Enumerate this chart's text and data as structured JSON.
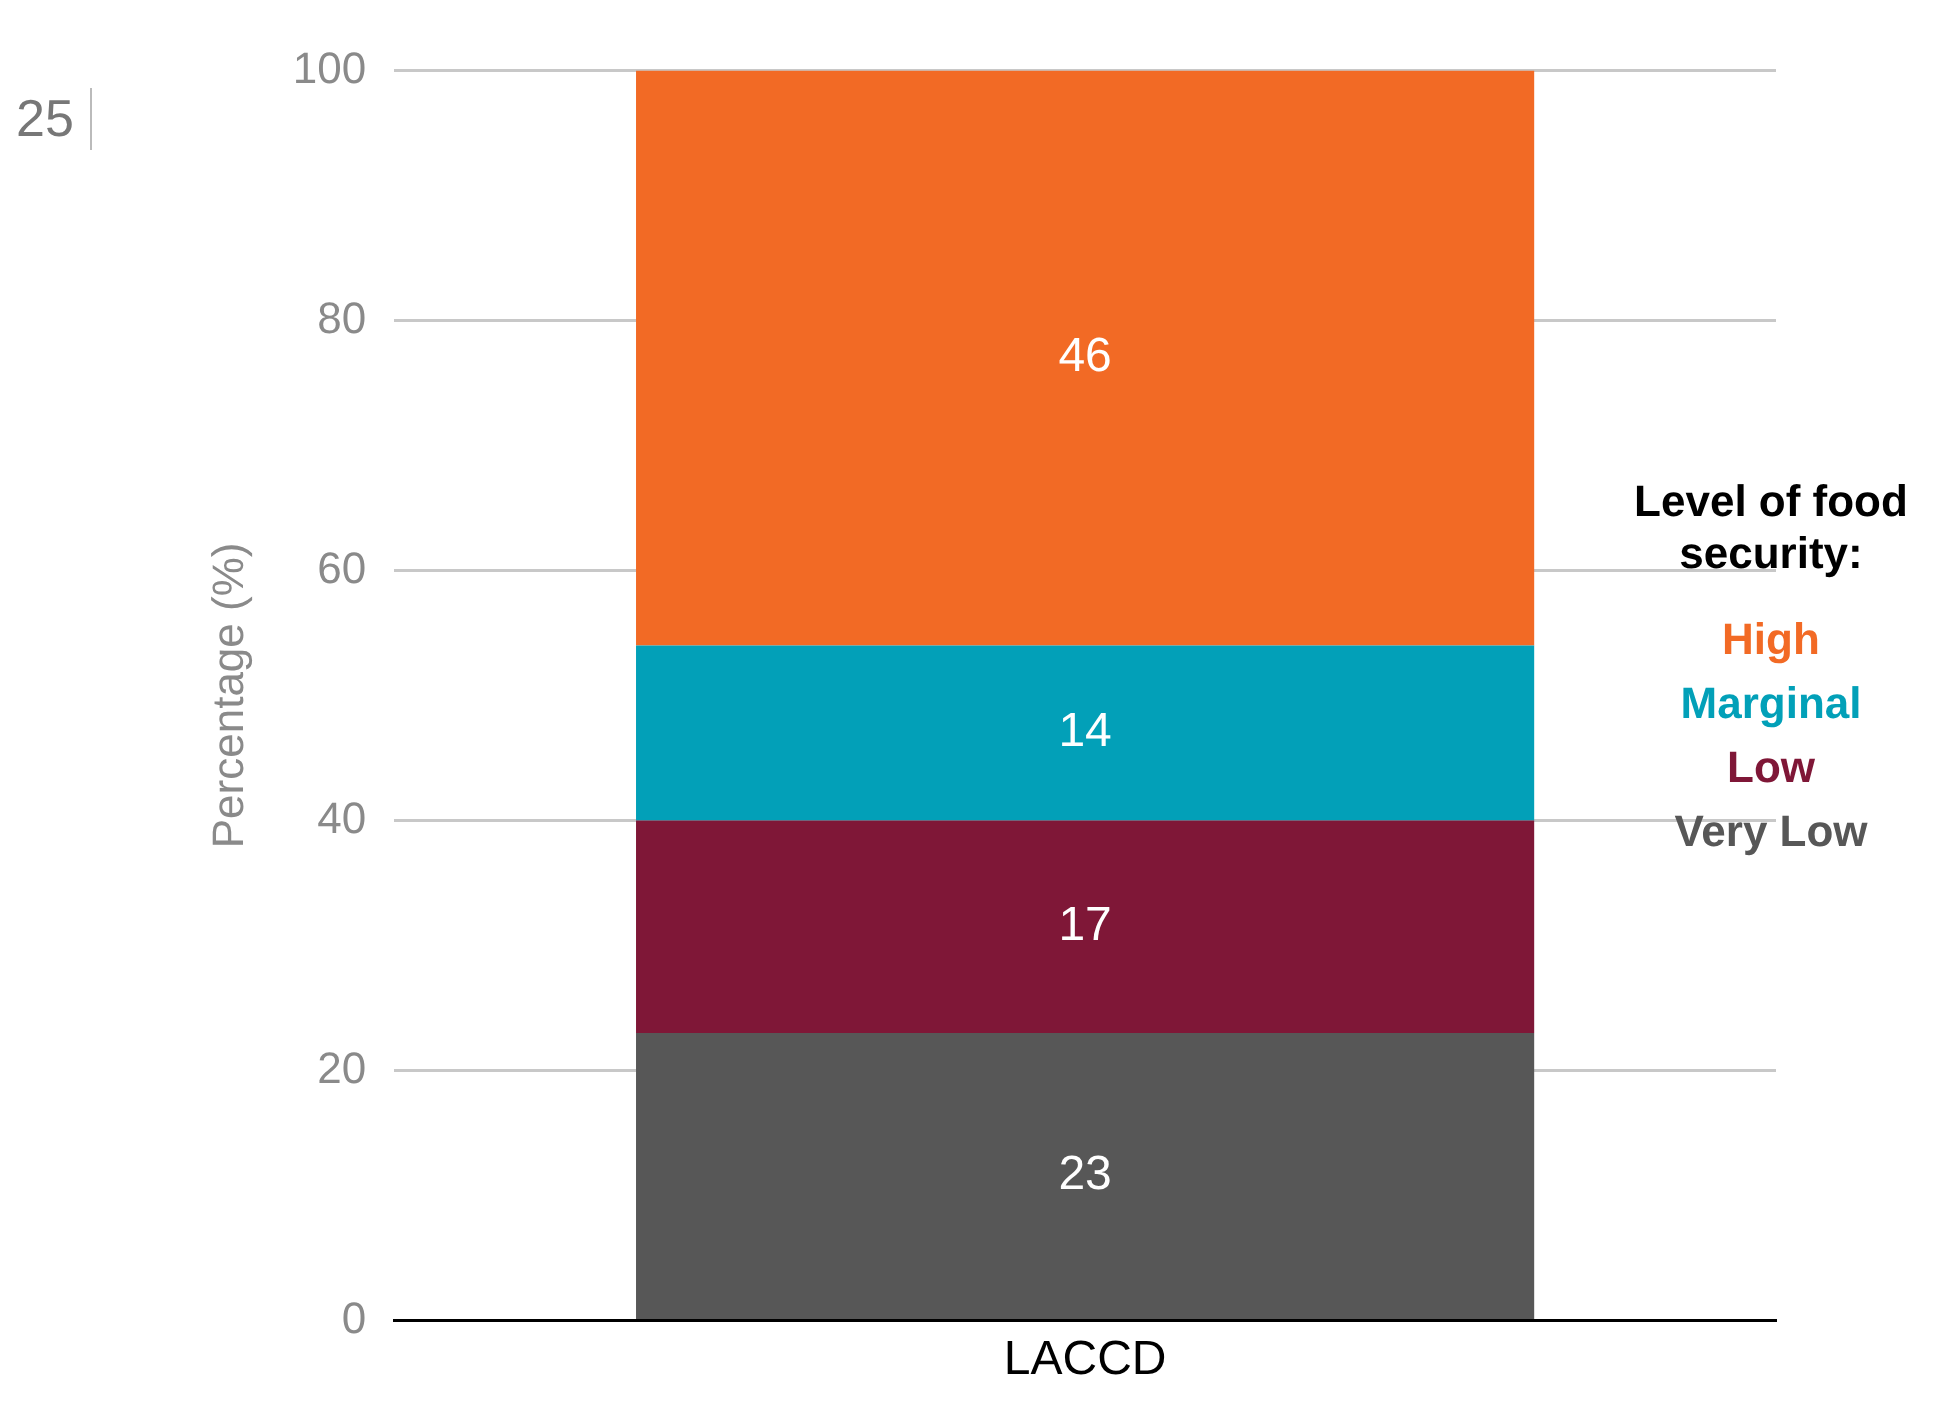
{
  "chart_data": {
    "type": "bar",
    "stacked": true,
    "categories": [
      "LACCD"
    ],
    "ylabel": "Percentage (%)",
    "legend_title": "Level of food security:",
    "legend": "right",
    "ylim": [
      0,
      100
    ],
    "yticks": [
      0,
      20,
      40,
      60,
      80,
      100
    ],
    "grid": "y",
    "data_labels": true,
    "annotations": [
      "25"
    ],
    "series": [
      {
        "name": "Very Low",
        "color": "#575757",
        "values": [
          23
        ]
      },
      {
        "name": "Low",
        "color": "#7f1737",
        "values": [
          17
        ]
      },
      {
        "name": "Marginal",
        "color": "#02a0b8",
        "values": [
          14
        ]
      },
      {
        "name": "High",
        "color": "#f26a25",
        "values": [
          46
        ]
      }
    ]
  }
}
